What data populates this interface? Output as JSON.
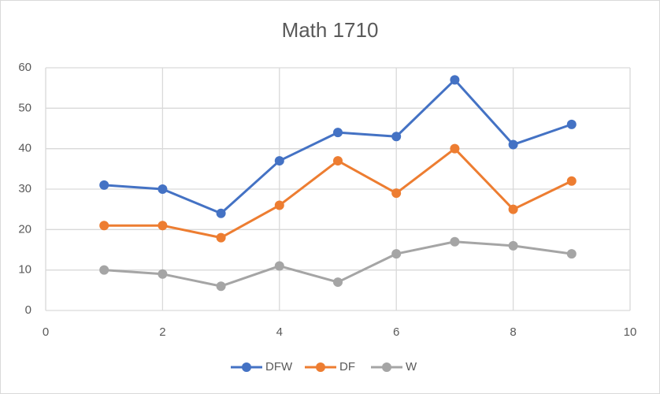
{
  "chart_data": {
    "type": "line",
    "title": "Math 1710",
    "x": [
      1,
      2,
      3,
      4,
      5,
      6,
      7,
      8,
      9
    ],
    "series": [
      {
        "name": "DFW",
        "color": "#4472c4",
        "values": [
          31,
          30,
          24,
          37,
          44,
          43,
          57,
          41,
          46
        ]
      },
      {
        "name": "DF",
        "color": "#ed7d31",
        "values": [
          21,
          21,
          18,
          26,
          37,
          29,
          40,
          25,
          32
        ]
      },
      {
        "name": "W",
        "color": "#a5a5a5",
        "values": [
          10,
          9,
          6,
          11,
          7,
          14,
          17,
          16,
          14
        ]
      }
    ],
    "xlim": [
      0,
      10
    ],
    "xticks": [
      0,
      2,
      4,
      6,
      8,
      10
    ],
    "ylim": [
      0,
      60
    ],
    "yticks": [
      0,
      10,
      20,
      30,
      40,
      50,
      60
    ],
    "grid": true,
    "legend": "bottom"
  }
}
